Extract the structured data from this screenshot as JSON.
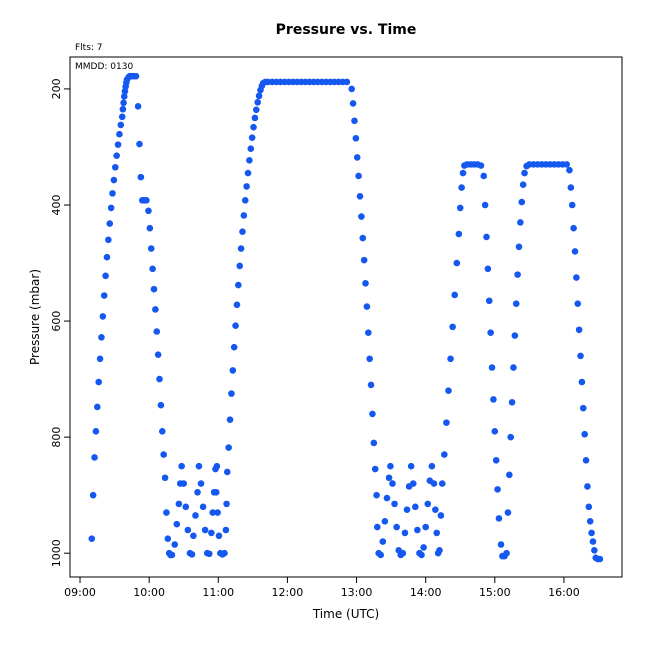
{
  "chart_data": {
    "type": "scatter",
    "title": "Pressure  vs. Time",
    "annotations": [
      "Flts: 7",
      "MMDD: 0130"
    ],
    "x_label": "Time (UTC)",
    "y_label": "Pressure (mbar)",
    "xlim": [
      8.855,
      16.84
    ],
    "xticks": [
      {
        "value": 9,
        "label": "09:00"
      },
      {
        "value": 10,
        "label": "10:00"
      },
      {
        "value": 11,
        "label": "11:00"
      },
      {
        "value": 12,
        "label": "12:00"
      },
      {
        "value": 13,
        "label": "13:00"
      },
      {
        "value": 14,
        "label": "14:00"
      },
      {
        "value": 15,
        "label": "15:00"
      },
      {
        "value": 16,
        "label": "16:00"
      }
    ],
    "ylim": [
      145,
      1041
    ],
    "y_inverted": true,
    "yticks": [
      200,
      400,
      600,
      800,
      1000
    ],
    "grid": false,
    "series": [
      {
        "color": "#1558f0",
        "x": [
          9.17,
          9.19,
          9.21,
          9.23,
          9.25,
          9.27,
          9.29,
          9.31,
          9.33,
          9.35,
          9.37,
          9.39,
          9.41,
          9.43,
          9.45,
          9.47,
          9.49,
          9.51,
          9.53,
          9.55,
          9.57,
          9.59,
          9.61,
          9.62,
          9.63,
          9.64,
          9.65,
          9.66,
          9.67,
          9.68,
          9.7,
          9.72,
          9.75,
          9.78,
          9.81,
          9.84,
          9.86,
          9.88,
          9.9,
          9.93,
          9.96,
          9.99,
          10.01,
          10.03,
          10.05,
          10.07,
          10.09,
          10.11,
          10.13,
          10.15,
          10.17,
          10.19,
          10.21,
          10.23,
          10.25,
          10.27,
          10.29,
          10.31,
          10.33,
          10.37,
          10.4,
          10.43,
          10.45,
          10.47,
          10.5,
          10.53,
          10.56,
          10.59,
          10.62,
          10.64,
          10.67,
          10.7,
          10.72,
          10.75,
          10.78,
          10.81,
          10.84,
          10.87,
          10.9,
          10.92,
          10.94,
          10.96,
          10.98,
          10.97,
          10.99,
          11.01,
          11.03,
          11.06,
          11.09,
          11.11,
          11.12,
          11.13,
          11.15,
          11.17,
          11.19,
          11.21,
          11.23,
          11.25,
          11.27,
          11.29,
          11.31,
          11.33,
          11.35,
          11.37,
          11.39,
          11.41,
          11.43,
          11.45,
          11.47,
          11.49,
          11.51,
          11.53,
          11.55,
          11.57,
          11.59,
          11.61,
          11.63,
          11.65,
          11.68,
          11.72,
          11.78,
          11.84,
          11.9,
          11.96,
          12.02,
          12.08,
          12.14,
          12.2,
          12.26,
          12.32,
          12.38,
          12.44,
          12.5,
          12.56,
          12.62,
          12.68,
          12.74,
          12.8,
          12.86,
          12.93,
          12.95,
          12.97,
          12.99,
          13.01,
          13.03,
          13.05,
          13.07,
          13.09,
          13.11,
          13.13,
          13.15,
          13.17,
          13.19,
          13.21,
          13.23,
          13.25,
          13.27,
          13.29,
          13.3,
          13.32,
          13.35,
          13.38,
          13.41,
          13.44,
          13.47,
          13.49,
          13.52,
          13.55,
          13.58,
          13.61,
          13.64,
          13.67,
          13.7,
          13.73,
          13.76,
          13.79,
          13.82,
          13.85,
          13.88,
          13.91,
          13.94,
          13.97,
          14.0,
          14.03,
          14.06,
          14.09,
          14.12,
          14.14,
          14.16,
          14.18,
          14.2,
          14.22,
          14.24,
          14.27,
          14.3,
          14.33,
          14.36,
          14.39,
          14.42,
          14.45,
          14.48,
          14.5,
          14.52,
          14.54,
          14.56,
          14.6,
          14.65,
          14.7,
          14.75,
          14.8,
          14.84,
          14.86,
          14.88,
          14.9,
          14.92,
          14.94,
          14.96,
          14.98,
          15.0,
          15.02,
          15.04,
          15.06,
          15.09,
          15.11,
          15.14,
          15.17,
          15.19,
          15.21,
          15.23,
          15.25,
          15.27,
          15.29,
          15.31,
          15.33,
          15.35,
          15.37,
          15.39,
          15.41,
          15.43,
          15.46,
          15.5,
          15.56,
          15.62,
          15.68,
          15.74,
          15.8,
          15.86,
          15.92,
          15.98,
          16.04,
          16.08,
          16.1,
          16.12,
          16.14,
          16.16,
          16.18,
          16.2,
          16.22,
          16.24,
          16.26,
          16.28,
          16.3,
          16.32,
          16.34,
          16.36,
          16.38,
          16.4,
          16.42,
          16.44,
          16.46,
          16.49,
          16.52
        ],
        "values": [
          975,
          900,
          835,
          790,
          748,
          705,
          665,
          628,
          592,
          556,
          522,
          490,
          460,
          432,
          405,
          380,
          357,
          335,
          315,
          296,
          278,
          262,
          248,
          235,
          224,
          213,
          204,
          196,
          189,
          184,
          180,
          178,
          178,
          178,
          178,
          230,
          295,
          352,
          392,
          392,
          392,
          410,
          440,
          475,
          510,
          545,
          580,
          618,
          658,
          700,
          745,
          790,
          830,
          870,
          930,
          975,
          1000,
          1003,
          1003,
          985,
          950,
          915,
          880,
          850,
          880,
          920,
          960,
          1000,
          1002,
          970,
          935,
          895,
          850,
          880,
          920,
          960,
          1000,
          1001,
          965,
          930,
          895,
          855,
          850,
          895,
          930,
          970,
          1000,
          1002,
          1000,
          960,
          915,
          860,
          818,
          770,
          725,
          685,
          645,
          608,
          572,
          538,
          505,
          475,
          446,
          418,
          392,
          368,
          345,
          323,
          303,
          284,
          266,
          250,
          236,
          223,
          212,
          202,
          195,
          190,
          188,
          188,
          188,
          188,
          188,
          188,
          188,
          188,
          188,
          188,
          188,
          188,
          188,
          188,
          188,
          188,
          188,
          188,
          188,
          188,
          188,
          200,
          225,
          255,
          285,
          318,
          350,
          385,
          420,
          457,
          495,
          535,
          575,
          620,
          665,
          710,
          760,
          810,
          855,
          900,
          955,
          1000,
          1003,
          980,
          945,
          905,
          870,
          850,
          880,
          915,
          955,
          995,
          1003,
          1000,
          965,
          925,
          885,
          850,
          880,
          920,
          960,
          1000,
          1003,
          990,
          955,
          915,
          875,
          850,
          880,
          925,
          965,
          1000,
          995,
          935,
          880,
          830,
          775,
          720,
          665,
          610,
          555,
          500,
          450,
          405,
          370,
          345,
          332,
          330,
          330,
          330,
          330,
          332,
          350,
          400,
          455,
          510,
          565,
          620,
          680,
          735,
          790,
          840,
          890,
          940,
          985,
          1005,
          1005,
          1000,
          930,
          865,
          800,
          740,
          680,
          625,
          570,
          520,
          472,
          430,
          395,
          365,
          345,
          333,
          330,
          330,
          330,
          330,
          330,
          330,
          330,
          330,
          330,
          330,
          340,
          370,
          400,
          440,
          480,
          525,
          570,
          615,
          660,
          705,
          750,
          795,
          840,
          885,
          920,
          945,
          965,
          980,
          995,
          1008,
          1010,
          1010
        ]
      }
    ]
  }
}
